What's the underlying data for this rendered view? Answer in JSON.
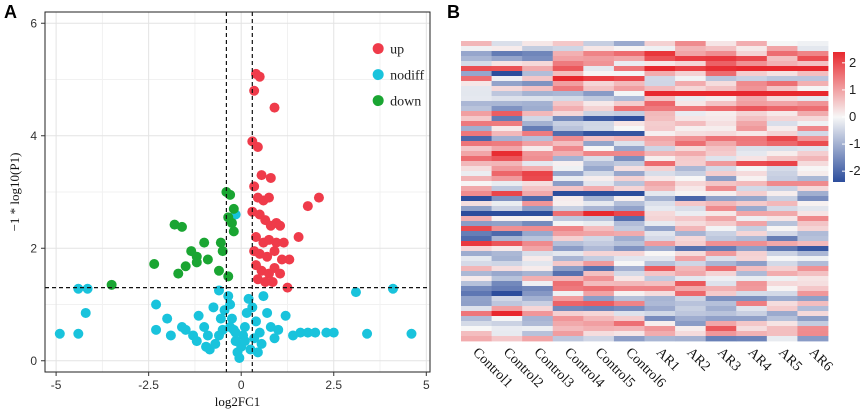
{
  "panel_a_label": "A",
  "panel_b_label": "B",
  "chart_data": [
    {
      "type": "scatter",
      "title": "",
      "xlabel": "log2FC1",
      "ylabel": "−1 * log10(P1)",
      "xlim": [
        -5.3,
        5.1
      ],
      "ylim": [
        -0.2,
        6.2
      ],
      "x_ticks": [
        -5,
        -2.5,
        0,
        2.5,
        5
      ],
      "x_tick_labels": [
        "-5",
        "-2.5",
        "0",
        "2.5",
        "5"
      ],
      "y_ticks": [
        0,
        2,
        4,
        6
      ],
      "y_tick_labels": [
        "0",
        "2",
        "4",
        "6"
      ],
      "thresholds": {
        "x": [
          -0.4,
          0.3
        ],
        "y": 1.3
      },
      "legend": [
        "up",
        "nodiff",
        "down"
      ],
      "colors": {
        "up": "#ef3b4a",
        "nodiff": "#19c3dc",
        "down": "#1aa532"
      },
      "series": [
        {
          "name": "nodiff",
          "points": [
            [
              -4.9,
              0.48
            ],
            [
              -4.4,
              0.48
            ],
            [
              -4.4,
              1.28
            ],
            [
              -4.2,
              0.85
            ],
            [
              -4.15,
              1.28
            ],
            [
              -2.3,
              1.0
            ],
            [
              -2.3,
              0.55
            ],
            [
              -2.0,
              0.75
            ],
            [
              -1.9,
              0.45
            ],
            [
              -1.6,
              0.6
            ],
            [
              -1.5,
              0.55
            ],
            [
              -1.3,
              0.45
            ],
            [
              -1.2,
              0.35
            ],
            [
              -1.15,
              0.8
            ],
            [
              -1.0,
              0.6
            ],
            [
              -0.9,
              0.45
            ],
            [
              -0.85,
              0.2
            ],
            [
              -0.7,
              0.3
            ],
            [
              -0.6,
              0.45
            ],
            [
              -0.5,
              0.55
            ],
            [
              -0.6,
              1.25
            ],
            [
              -0.35,
              1.15
            ],
            [
              -0.3,
              1.0
            ],
            [
              -0.25,
              0.75
            ],
            [
              -0.2,
              0.55
            ],
            [
              -0.15,
              0.35
            ],
            [
              -0.1,
              0.15
            ],
            [
              -0.05,
              0.05
            ],
            [
              0.0,
              0.25
            ],
            [
              0.05,
              0.45
            ],
            [
              0.1,
              0.6
            ],
            [
              0.15,
              0.85
            ],
            [
              0.2,
              1.1
            ],
            [
              0.3,
              0.95
            ],
            [
              0.4,
              0.7
            ],
            [
              0.5,
              0.5
            ],
            [
              0.55,
              0.3
            ],
            [
              0.6,
              1.15
            ],
            [
              0.7,
              0.85
            ],
            [
              0.8,
              0.6
            ],
            [
              0.9,
              0.4
            ],
            [
              1.0,
              0.55
            ],
            [
              1.2,
              0.8
            ],
            [
              1.4,
              0.45
            ],
            [
              1.6,
              0.5
            ],
            [
              1.8,
              0.5
            ],
            [
              2.0,
              0.5
            ],
            [
              2.3,
              0.5
            ],
            [
              2.5,
              0.5
            ],
            [
              3.1,
              1.22
            ],
            [
              3.4,
              0.48
            ],
            [
              4.1,
              1.28
            ],
            [
              4.6,
              0.48
            ],
            [
              -0.15,
              2.6
            ],
            [
              -0.45,
              0.9
            ],
            [
              -0.75,
              0.95
            ],
            [
              -0.95,
              0.25
            ],
            [
              0.25,
              0.2
            ],
            [
              0.35,
              0.4
            ],
            [
              -0.3,
              0.6
            ],
            [
              0.1,
              0.35
            ],
            [
              -0.15,
              0.5
            ],
            [
              0.45,
              0.15
            ],
            [
              -0.55,
              0.75
            ]
          ]
        },
        {
          "name": "up",
          "points": [
            [
              0.4,
              5.1
            ],
            [
              0.5,
              5.05
            ],
            [
              0.35,
              4.8
            ],
            [
              0.9,
              4.5
            ],
            [
              0.3,
              3.9
            ],
            [
              0.45,
              3.8
            ],
            [
              0.55,
              3.3
            ],
            [
              0.8,
              3.25
            ],
            [
              0.35,
              3.1
            ],
            [
              0.45,
              2.9
            ],
            [
              0.6,
              2.85
            ],
            [
              0.75,
              2.9
            ],
            [
              0.3,
              2.65
            ],
            [
              0.5,
              2.6
            ],
            [
              0.65,
              2.5
            ],
            [
              0.8,
              2.4
            ],
            [
              0.95,
              2.45
            ],
            [
              1.05,
              2.4
            ],
            [
              0.4,
              2.2
            ],
            [
              0.6,
              2.1
            ],
            [
              0.75,
              2.15
            ],
            [
              0.95,
              2.1
            ],
            [
              1.15,
              2.1
            ],
            [
              0.35,
              1.95
            ],
            [
              0.5,
              1.9
            ],
            [
              0.7,
              1.85
            ],
            [
              0.9,
              1.95
            ],
            [
              1.1,
              1.8
            ],
            [
              1.3,
              1.8
            ],
            [
              0.4,
              1.7
            ],
            [
              0.55,
              1.6
            ],
            [
              0.75,
              1.55
            ],
            [
              0.9,
              1.65
            ],
            [
              1.05,
              1.55
            ],
            [
              0.45,
              1.45
            ],
            [
              0.65,
              1.4
            ],
            [
              1.25,
              1.3
            ],
            [
              1.55,
              2.2
            ],
            [
              1.8,
              2.75
            ],
            [
              2.1,
              2.9
            ],
            [
              0.85,
              1.4
            ]
          ]
        },
        {
          "name": "down",
          "points": [
            [
              -0.3,
              2.95
            ],
            [
              -0.4,
              3.0
            ],
            [
              -0.2,
              2.7
            ],
            [
              -0.25,
              2.45
            ],
            [
              -0.35,
              2.55
            ],
            [
              -0.2,
              2.3
            ],
            [
              -1.8,
              2.42
            ],
            [
              -1.6,
              2.38
            ],
            [
              -1.0,
              2.1
            ],
            [
              -0.55,
              2.1
            ],
            [
              -0.5,
              1.95
            ],
            [
              -1.2,
              1.85
            ],
            [
              -1.35,
              1.95
            ],
            [
              -0.9,
              1.8
            ],
            [
              -1.2,
              1.75
            ],
            [
              -1.5,
              1.68
            ],
            [
              -1.7,
              1.55
            ],
            [
              -2.35,
              1.72
            ],
            [
              -0.35,
              1.5
            ],
            [
              -0.6,
              1.6
            ],
            [
              -3.5,
              1.35
            ]
          ]
        }
      ]
    },
    {
      "type": "heatmap",
      "columns": [
        "Control1",
        "Control2",
        "Control3",
        "Control4",
        "Control5",
        "Control6",
        "AR1",
        "AR2",
        "AR3",
        "AR4",
        "AR5",
        "AR6"
      ],
      "n_rows": 60,
      "value_range": [
        -2.4,
        2.4
      ],
      "colorbar_ticks": [
        2,
        1,
        0,
        -1,
        -2
      ],
      "colorbar_tick_labels": [
        "2",
        "1",
        "0",
        "-1",
        "-2"
      ],
      "colors": {
        "low": "#2c4d9c",
        "mid": "#f7f7f7",
        "high": "#e8282e"
      },
      "seed": 17
    }
  ]
}
